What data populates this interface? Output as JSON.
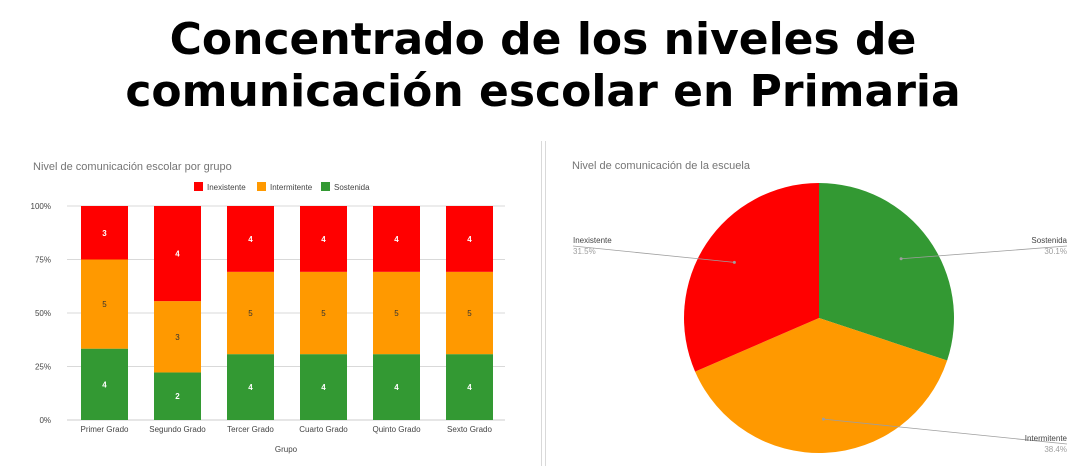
{
  "page": {
    "title_line1": "Concentrado de los niveles de",
    "title_line2": "comunicación escolar en Primaria"
  },
  "colors": {
    "inexistente": "#ff0000",
    "intermitente": "#ff9900",
    "sostenida": "#339933",
    "grid": "#cccccc",
    "axis_text": "#444444",
    "chart_title": "#757575"
  },
  "chart_data": [
    {
      "type": "bar",
      "stacked": "percent",
      "title": "Nivel de comunicación escolar por grupo",
      "xlabel": "Grupo",
      "ylabel": "",
      "ylim": [
        0,
        100
      ],
      "yticks": [
        "0%",
        "25%",
        "50%",
        "75%",
        "100%"
      ],
      "categories": [
        "Primer Grado",
        "Segundo Grado",
        "Tercer Grado",
        "Cuarto Grado",
        "Quinto Grado",
        "Sexto Grado"
      ],
      "legend_position": "top",
      "series": [
        {
          "name": "Sostenida",
          "values": [
            4,
            2,
            4,
            4,
            4,
            4
          ]
        },
        {
          "name": "Intermitente",
          "values": [
            5,
            3,
            5,
            5,
            5,
            5
          ]
        },
        {
          "name": "Inexistente",
          "values": [
            3,
            4,
            4,
            4,
            4,
            4
          ]
        }
      ]
    },
    {
      "type": "pie",
      "title": "Nivel de comunicación de la escuela",
      "labels": [
        "Sostenida",
        "Intermitente",
        "Inexistente"
      ],
      "values": [
        30.1,
        38.4,
        31.5
      ],
      "value_labels": [
        "30.1%",
        "38.4%",
        "31.5%"
      ]
    }
  ]
}
